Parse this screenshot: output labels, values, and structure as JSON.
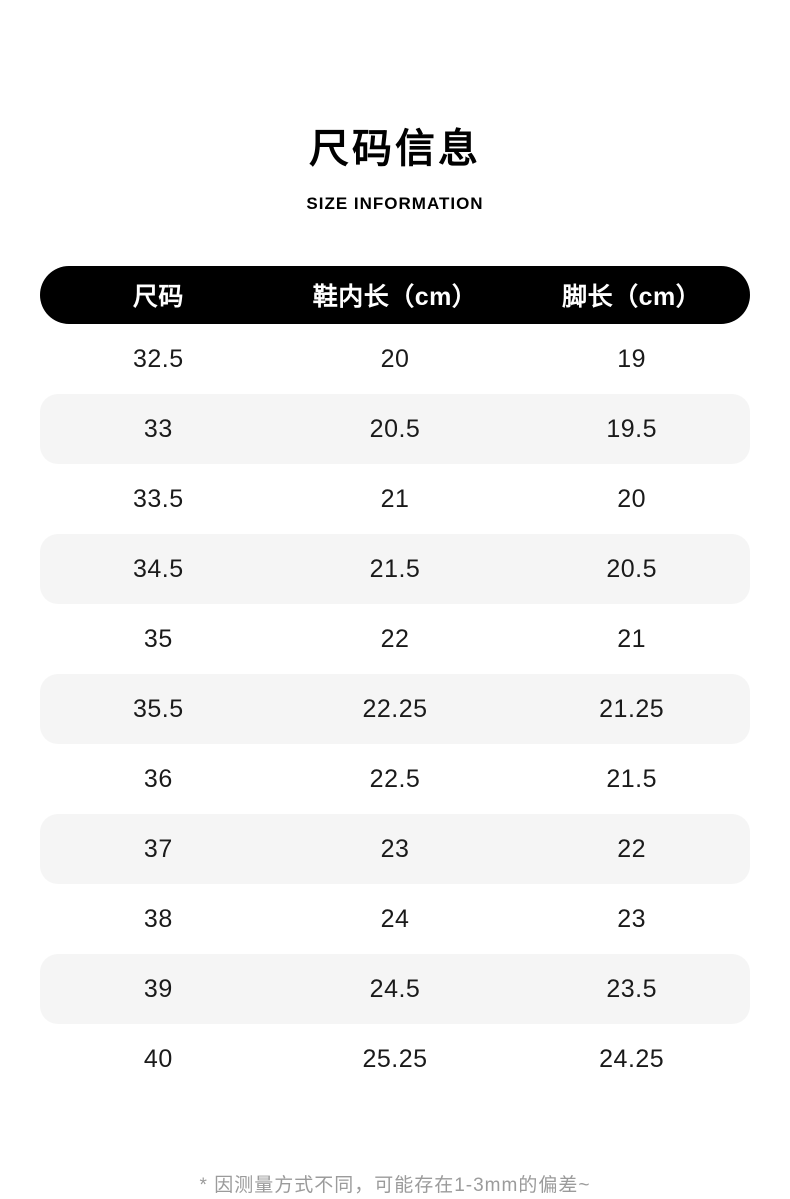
{
  "page": {
    "title": "尺码信息",
    "subtitle": "SIZE INFORMATION",
    "footnote": "* 因测量方式不同，可能存在1-3mm的偏差~"
  },
  "table": {
    "headers": [
      "尺码",
      "鞋内长（cm）",
      "脚长（cm）"
    ],
    "rows": [
      [
        "32.5",
        "20",
        "19"
      ],
      [
        "33",
        "20.5",
        "19.5"
      ],
      [
        "33.5",
        "21",
        "20"
      ],
      [
        "34.5",
        "21.5",
        "20.5"
      ],
      [
        "35",
        "22",
        "21"
      ],
      [
        "35.5",
        "22.25",
        "21.25"
      ],
      [
        "36",
        "22.5",
        "21.5"
      ],
      [
        "37",
        "23",
        "22"
      ],
      [
        "38",
        "24",
        "23"
      ],
      [
        "39",
        "24.5",
        "23.5"
      ],
      [
        "40",
        "25.25",
        "24.25"
      ]
    ]
  },
  "chart_data": {
    "type": "table",
    "title": "尺码信息",
    "subtitle": "SIZE INFORMATION",
    "columns": [
      "尺码",
      "鞋内长（cm）",
      "脚长（cm）"
    ],
    "rows": [
      [
        "32.5",
        "20",
        "19"
      ],
      [
        "33",
        "20.5",
        "19.5"
      ],
      [
        "33.5",
        "21",
        "20"
      ],
      [
        "34.5",
        "21.5",
        "20.5"
      ],
      [
        "35",
        "22",
        "21"
      ],
      [
        "35.5",
        "22.25",
        "21.25"
      ],
      [
        "36",
        "22.5",
        "21.5"
      ],
      [
        "37",
        "23",
        "22"
      ],
      [
        "38",
        "24",
        "23"
      ],
      [
        "39",
        "24.5",
        "23.5"
      ],
      [
        "40",
        "25.25",
        "24.25"
      ]
    ],
    "note": "* 因测量方式不同，可能存在1-3mm的偏差~",
    "layout_hints": {
      "header_style": "black rounded pill, white bold text",
      "row_striping": "odd rows (2nd, 4th, ...) light gray rounded bands",
      "alignment": "all columns centered"
    }
  },
  "colors": {
    "background": "#ffffff",
    "header_bg": "#000000",
    "header_text": "#ffffff",
    "row_alt_bg": "#f5f5f5",
    "body_text": "#1a1a1a",
    "note_text": "#9b9b9b"
  }
}
